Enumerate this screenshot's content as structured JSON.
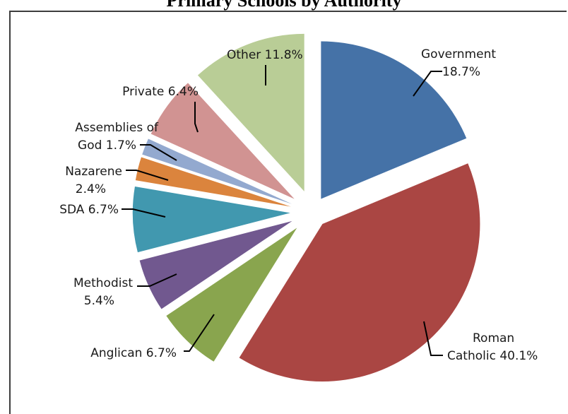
{
  "chart_data": {
    "type": "pie",
    "title": "",
    "clipped_title_text": "Primary Schools by Authority",
    "slices": [
      {
        "label_lines": [
          "Government",
          "18.7%"
        ],
        "value": 18.7,
        "color": "#4572a7",
        "explode": 0.1
      },
      {
        "label_lines": [
          "Roman",
          "Catholic 40.1%"
        ],
        "value": 40.1,
        "color": "#aa4643",
        "explode": 0.1
      },
      {
        "label_lines": [
          "Anglican 6.7%"
        ],
        "value": 6.7,
        "color": "#89a54e",
        "explode": 0.14
      },
      {
        "label_lines": [
          "Methodist",
          "5.4%"
        ],
        "value": 5.4,
        "color": "#71588f",
        "explode": 0.14
      },
      {
        "label_lines": [
          "SDA 6.7%"
        ],
        "value": 6.7,
        "color": "#4198af",
        "explode": 0.14
      },
      {
        "label_lines": [
          "Nazarene",
          "2.4%"
        ],
        "value": 2.4,
        "color": "#db843d",
        "explode": 0.14
      },
      {
        "label_lines": [
          "Assemblies of",
          "God 1.7%"
        ],
        "value": 1.7,
        "color": "#93a9cf",
        "explode": 0.14
      },
      {
        "label_lines": [
          "Private 6.4%"
        ],
        "value": 6.4,
        "color": "#d19392",
        "explode": 0.14
      },
      {
        "label_lines": [
          "Other 11.8%"
        ],
        "value": 11.8,
        "color": "#b9cd96",
        "explode": 0.14
      }
    ],
    "start_angle_deg": 0,
    "direction": "clockwise",
    "legend": "none"
  }
}
